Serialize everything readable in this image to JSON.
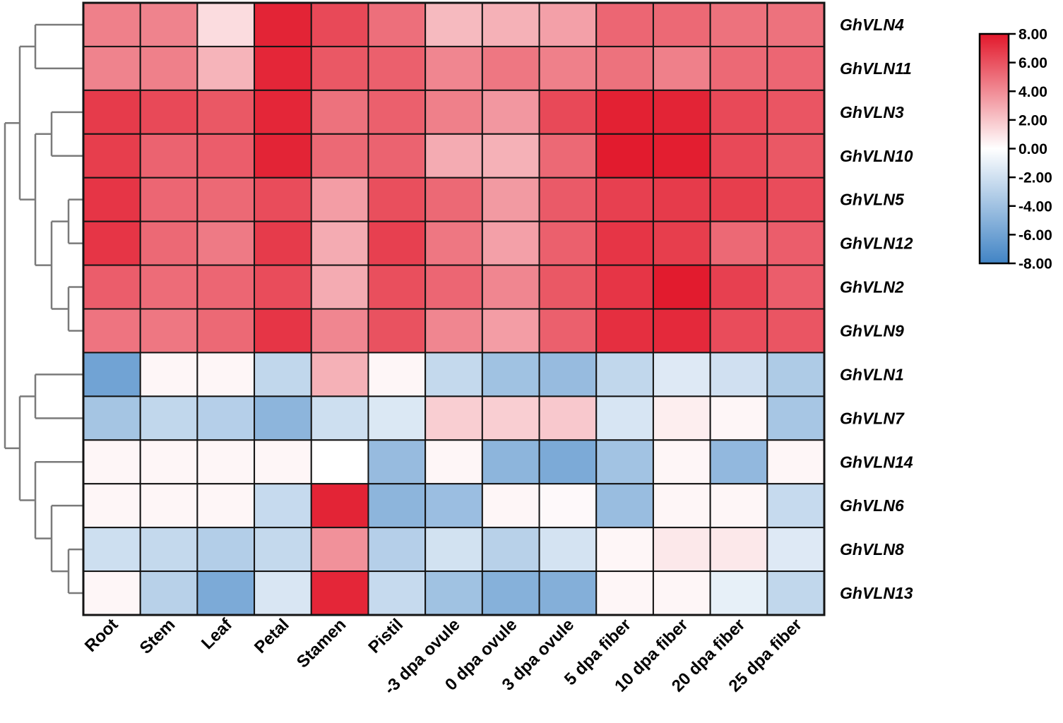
{
  "figure": {
    "title": "",
    "legend_position": "right"
  },
  "chart_data": {
    "type": "heatmap",
    "title": "",
    "xlabel": "",
    "ylabel": "",
    "grid": true,
    "legend_position": "right",
    "columns": [
      "Root",
      "Stem",
      "Leaf",
      "Petal",
      "Stamen",
      "Pistil",
      "-3 dpa ovule",
      "0 dpa ovule",
      "3 dpa ovule",
      "5 dpa fiber",
      "10 dpa fiber",
      "20 dpa fiber",
      "25 dpa fiber"
    ],
    "rows": [
      "GhVLN4",
      "GhVLN11",
      "GhVLN3",
      "GhVLN10",
      "GhVLN5",
      "GhVLN12",
      "GhVLN2",
      "GhVLN9",
      "GhVLN1",
      "GhVLN7",
      "GhVLN14",
      "GhVLN6",
      "GhVLN8",
      "GhVLN13"
    ],
    "values": [
      [
        4.4,
        4.3,
        1.2,
        7.6,
        6.3,
        5.0,
        2.4,
        2.7,
        3.3,
        5.3,
        5.2,
        4.9,
        4.9
      ],
      [
        4.3,
        4.4,
        2.6,
        7.5,
        5.8,
        5.5,
        4.2,
        4.7,
        4.4,
        4.9,
        4.4,
        5.2,
        5.3
      ],
      [
        6.8,
        6.3,
        5.8,
        7.5,
        4.9,
        5.5,
        4.4,
        3.6,
        6.3,
        7.7,
        7.6,
        6.3,
        5.9
      ],
      [
        6.7,
        5.4,
        5.6,
        7.6,
        5.2,
        5.4,
        2.9,
        2.7,
        5.2,
        7.9,
        7.8,
        6.3,
        5.8
      ],
      [
        7.0,
        5.3,
        5.2,
        6.2,
        3.4,
        6.1,
        5.2,
        3.5,
        5.7,
        6.6,
        6.8,
        6.7,
        6.2
      ],
      [
        7.0,
        5.2,
        4.6,
        6.8,
        2.9,
        6.6,
        4.7,
        3.3,
        5.5,
        7.0,
        6.7,
        5.2,
        5.6
      ],
      [
        5.6,
        5.1,
        5.3,
        6.2,
        2.9,
        6.1,
        5.3,
        4.2,
        5.8,
        7.0,
        7.9,
        6.6,
        5.6
      ],
      [
        4.8,
        4.7,
        5.2,
        7.0,
        4.2,
        6.0,
        4.2,
        3.4,
        5.5,
        7.2,
        7.4,
        6.2,
        5.9
      ],
      [
        -6.0,
        0.3,
        0.3,
        -2.6,
        2.7,
        0.3,
        -2.5,
        -4.0,
        -4.4,
        -2.6,
        -1.4,
        -2.0,
        -3.4
      ],
      [
        -3.8,
        -2.6,
        -3.1,
        -4.8,
        -2.1,
        -1.5,
        1.7,
        1.7,
        1.9,
        -1.7,
        0.6,
        0.3,
        -3.7
      ],
      [
        0.3,
        0.3,
        0.3,
        0.3,
        0.0,
        -4.4,
        0.3,
        -4.8,
        -5.5,
        -3.9,
        0.3,
        -4.6,
        0.3
      ],
      [
        0.3,
        0.3,
        0.3,
        -2.4,
        7.6,
        -4.8,
        -4.2,
        0.3,
        0.2,
        -4.3,
        0.3,
        0.3,
        -2.4
      ],
      [
        -2.1,
        -2.5,
        -3.2,
        -2.5,
        3.8,
        -3.1,
        -1.9,
        -3.0,
        -1.8,
        0.3,
        0.8,
        0.8,
        -1.4
      ],
      [
        0.3,
        -3.0,
        -5.5,
        -1.6,
        7.5,
        -2.4,
        -4.0,
        -5.1,
        -5.2,
        0.3,
        0.3,
        -1.0,
        -2.6
      ]
    ],
    "colorbar": {
      "min": -8,
      "max": 8,
      "tick_values": [
        8,
        6,
        4,
        2,
        0,
        -2,
        -4,
        -6,
        -8
      ],
      "tick_labels": [
        "8.00",
        "6.00",
        "4.00",
        "2.00",
        "0.00",
        "-2.00",
        "-4.00",
        "-6.00",
        "-8.00"
      ]
    },
    "colors": {
      "max_red": "#e2182b",
      "zero_white": "#ffffff",
      "min_blue": "#4184c5",
      "grid_line": "#141414",
      "dendrogram_line": "#7a7a7a",
      "label_text": "#000000",
      "background": "#ffffff"
    },
    "dendrogram": {
      "x": 7,
      "children": [
        {
          "x": 28,
          "children": [
            {
              "x": 50,
              "children": [
                {
                  "leaf": 0
                },
                {
                  "leaf": 1
                }
              ]
            },
            {
              "x": 50,
              "children": [
                {
                  "x": 73,
                  "children": [
                    {
                      "leaf": 2
                    },
                    {
                      "leaf": 3
                    }
                  ]
                },
                {
                  "x": 73,
                  "children": [
                    {
                      "x": 97,
                      "children": [
                        {
                          "leaf": 4
                        },
                        {
                          "leaf": 5
                        }
                      ]
                    },
                    {
                      "x": 97,
                      "children": [
                        {
                          "leaf": 6
                        },
                        {
                          "leaf": 7
                        }
                      ]
                    }
                  ]
                }
              ]
            }
          ]
        },
        {
          "x": 28,
          "children": [
            {
              "x": 50,
              "children": [
                {
                  "leaf": 8
                },
                {
                  "leaf": 9
                }
              ]
            },
            {
              "x": 50,
              "children": [
                {
                  "leaf": 10
                },
                {
                  "x": 73,
                  "children": [
                    {
                      "leaf": 11
                    },
                    {
                      "x": 97,
                      "children": [
                        {
                          "leaf": 12
                        },
                        {
                          "leaf": 13
                        }
                      ]
                    }
                  ]
                }
              ]
            }
          ]
        }
      ]
    }
  }
}
